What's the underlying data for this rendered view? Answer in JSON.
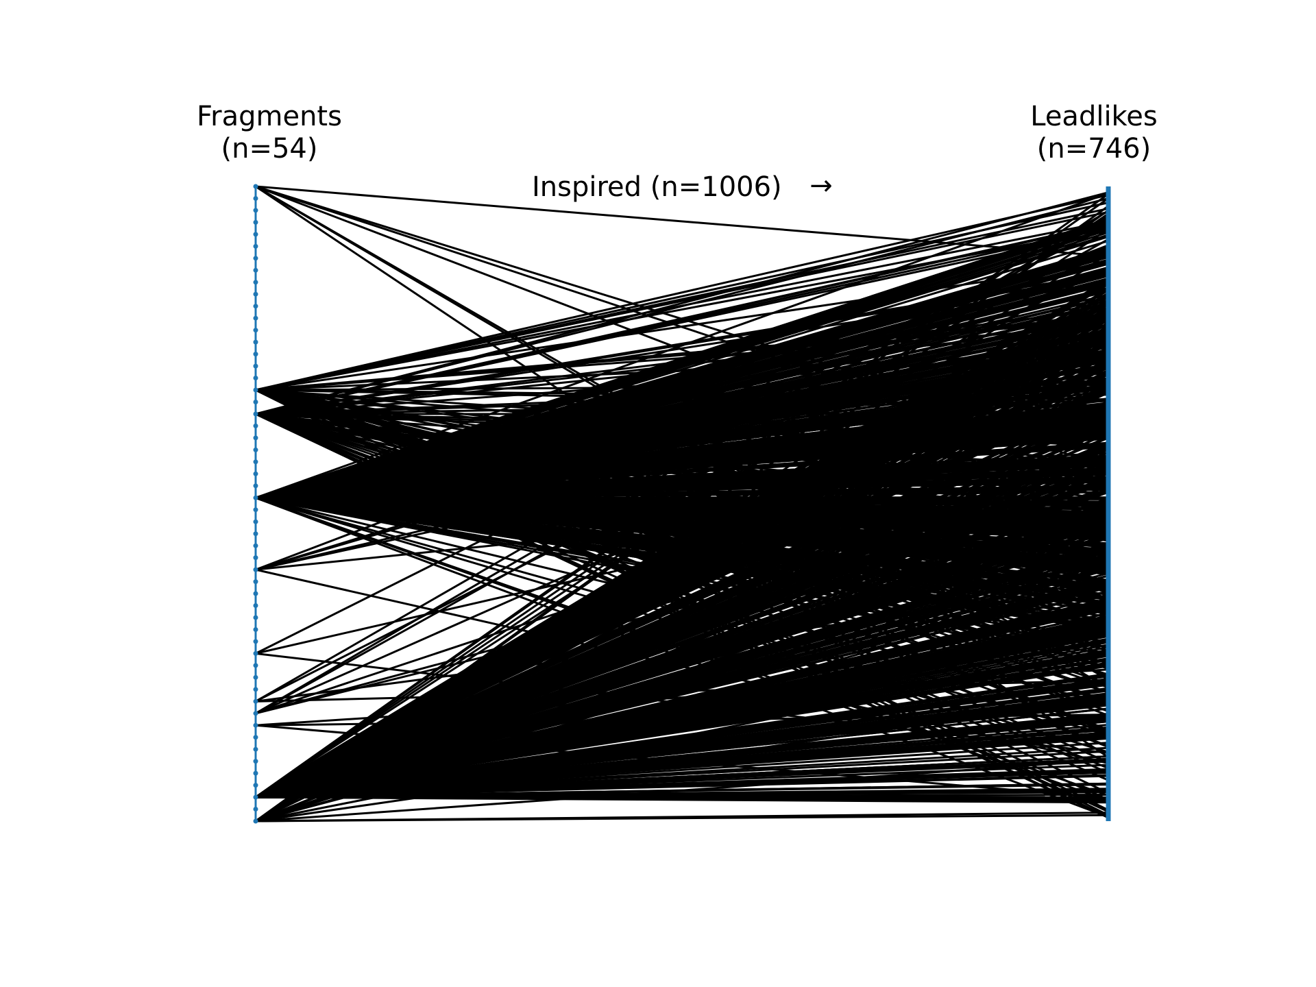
{
  "chart_data": {
    "type": "bipartite-link",
    "left_group": {
      "name": "Fragments",
      "count_label": "(n=54)",
      "count": 54
    },
    "right_group": {
      "name": "Leadlikes",
      "count_label": "(n=746)",
      "count": 746
    },
    "link_label": "Inspired (n=1006)",
    "link_arrow": "→",
    "link_count": 1006,
    "node_color": "#1f77b4",
    "link_color": "#000000"
  }
}
